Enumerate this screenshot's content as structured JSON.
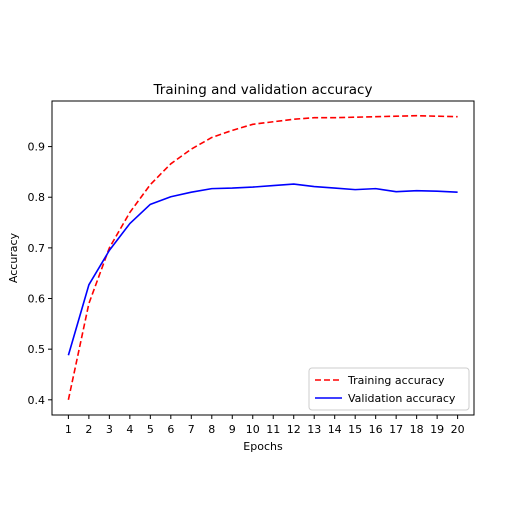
{
  "chart_data": {
    "type": "line",
    "title": "Training and validation accuracy",
    "xlabel": "Epochs",
    "ylabel": "Accuracy",
    "xlim": [
      0.2,
      20.8
    ],
    "ylim": [
      0.37,
      0.99
    ],
    "x": [
      1,
      2,
      3,
      4,
      5,
      6,
      7,
      8,
      9,
      10,
      11,
      12,
      13,
      14,
      15,
      16,
      17,
      18,
      19,
      20
    ],
    "x_ticks": [
      "1",
      "2",
      "3",
      "4",
      "5",
      "6",
      "7",
      "8",
      "9",
      "10",
      "11",
      "12",
      "13",
      "14",
      "15",
      "16",
      "17",
      "18",
      "19",
      "20"
    ],
    "y_ticks": [
      0.4,
      0.5,
      0.6,
      0.7,
      0.8,
      0.9
    ],
    "y_tick_labels": [
      "0.4",
      "0.5",
      "0.6",
      "0.7",
      "0.8",
      "0.9"
    ],
    "grid": false,
    "legend_position": "lower-right",
    "series": [
      {
        "name": "Training accuracy",
        "color": "#ff0000",
        "style": "dashed",
        "values": [
          0.4,
          0.59,
          0.7,
          0.77,
          0.825,
          0.866,
          0.895,
          0.918,
          0.932,
          0.944,
          0.949,
          0.954,
          0.957,
          0.957,
          0.958,
          0.959,
          0.96,
          0.961,
          0.96,
          0.959
        ]
      },
      {
        "name": "Validation accuracy",
        "color": "#0000ff",
        "style": "solid",
        "values": [
          0.488,
          0.627,
          0.695,
          0.748,
          0.786,
          0.801,
          0.81,
          0.817,
          0.818,
          0.82,
          0.823,
          0.826,
          0.821,
          0.818,
          0.815,
          0.817,
          0.811,
          0.813,
          0.812,
          0.81
        ]
      }
    ]
  }
}
